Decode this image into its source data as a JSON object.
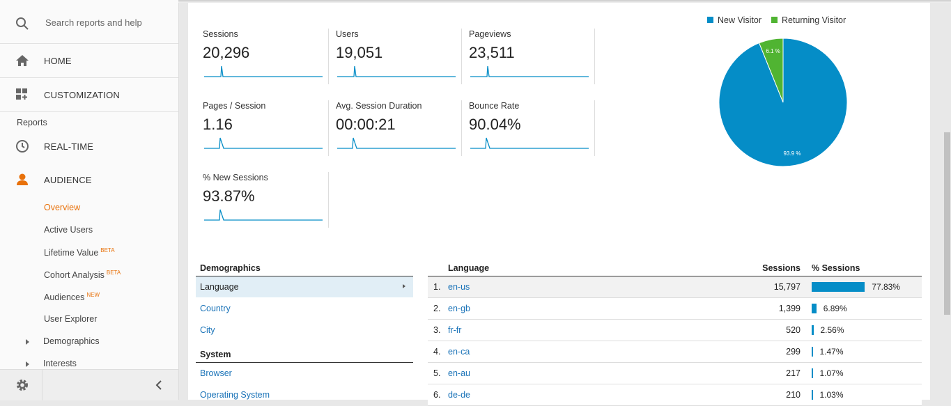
{
  "sidebar": {
    "search": "Search reports and help",
    "home": "HOME",
    "customization": "CUSTOMIZATION",
    "reports": "Reports",
    "realtime": "REAL-TIME",
    "audience": "AUDIENCE",
    "items": [
      {
        "label": "Overview"
      },
      {
        "label": "Active Users"
      },
      {
        "label": "Lifetime Value",
        "badge": "BETA"
      },
      {
        "label": "Cohort Analysis",
        "badge": "BETA"
      },
      {
        "label": "Audiences",
        "badge": "NEW"
      },
      {
        "label": "User Explorer"
      },
      {
        "label": "Demographics"
      },
      {
        "label": "Interests"
      }
    ]
  },
  "metrics": [
    {
      "label": "Sessions",
      "value": "20,296"
    },
    {
      "label": "Users",
      "value": "19,051"
    },
    {
      "label": "Pageviews",
      "value": "23,511"
    },
    {
      "label": "Pages / Session",
      "value": "1.16"
    },
    {
      "label": "Avg. Session Duration",
      "value": "00:00:21"
    },
    {
      "label": "Bounce Rate",
      "value": "90.04%"
    },
    {
      "label": "% New Sessions",
      "value": "93.87%"
    }
  ],
  "chart_data": {
    "type": "pie",
    "categories": [
      "New Visitor",
      "Returning Visitor"
    ],
    "values": [
      93.9,
      6.1
    ],
    "value_labels": [
      "93.9 %",
      "6.1 %"
    ],
    "colors": [
      "#058dc7",
      "#50b432"
    ],
    "legend": "top"
  },
  "demographics": {
    "heading": "Demographics",
    "items": [
      "Language",
      "Country",
      "City"
    ],
    "system_heading": "System",
    "system_items": [
      "Browser",
      "Operating System"
    ]
  },
  "table": {
    "headers": [
      "Language",
      "Sessions",
      "% Sessions"
    ],
    "rows": [
      {
        "rank": "1.",
        "language": "en-us",
        "sessions": "15,797",
        "percent": 77.83,
        "percent_label": "77.83%"
      },
      {
        "rank": "2.",
        "language": "en-gb",
        "sessions": "1,399",
        "percent": 6.89,
        "percent_label": "6.89%"
      },
      {
        "rank": "3.",
        "language": "fr-fr",
        "sessions": "520",
        "percent": 2.56,
        "percent_label": "2.56%"
      },
      {
        "rank": "4.",
        "language": "en-ca",
        "sessions": "299",
        "percent": 1.47,
        "percent_label": "1.47%"
      },
      {
        "rank": "5.",
        "language": "en-au",
        "sessions": "217",
        "percent": 1.07,
        "percent_label": "1.07%"
      },
      {
        "rank": "6.",
        "language": "de-de",
        "sessions": "210",
        "percent": 1.03,
        "percent_label": "1.03%"
      }
    ]
  }
}
